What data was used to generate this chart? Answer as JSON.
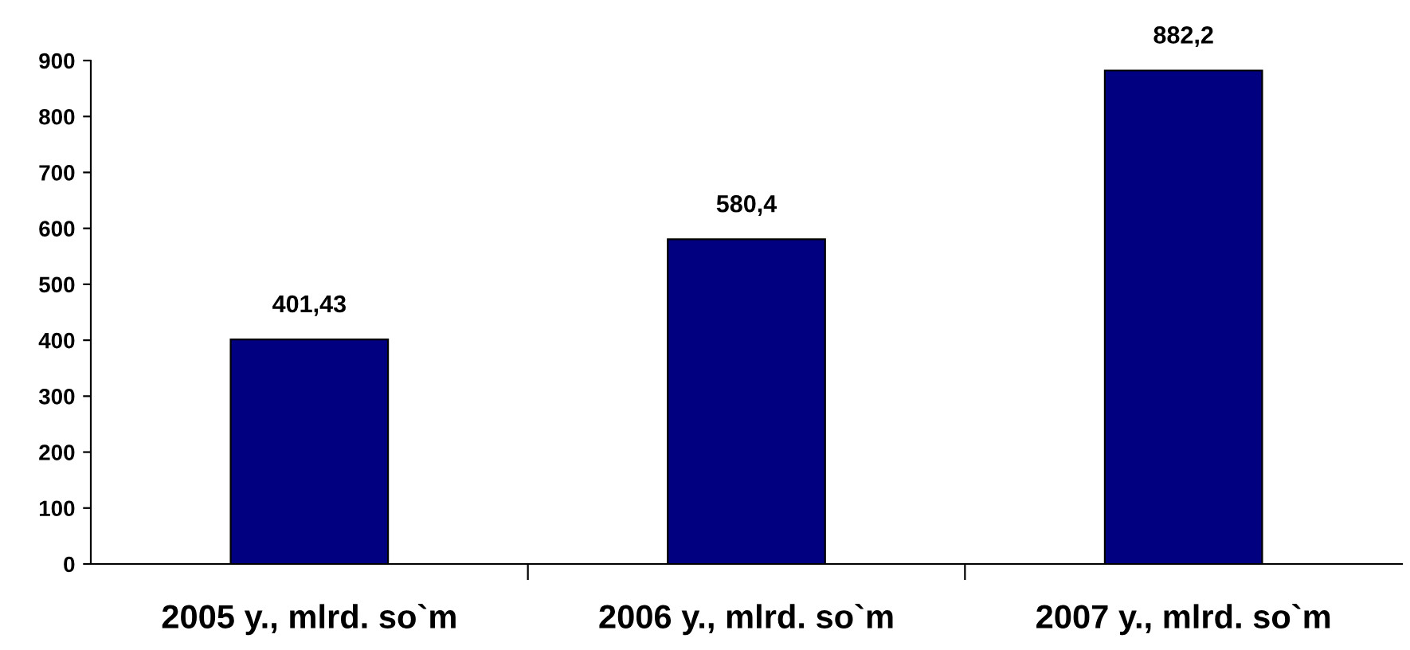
{
  "chart_data": {
    "type": "bar",
    "categories": [
      "2005 y., mlrd. so`m",
      "2006 y., mlrd. so`m",
      "2007 y., mlrd. so`m"
    ],
    "values": [
      401.43,
      580.4,
      882.2
    ],
    "value_labels": [
      "401,43",
      "580,4",
      "882,2"
    ],
    "color": "#000080",
    "ylim": [
      0,
      900
    ],
    "yticks": [
      0,
      100,
      200,
      300,
      400,
      500,
      600,
      700,
      800,
      900
    ],
    "grid": false,
    "legend": false
  }
}
